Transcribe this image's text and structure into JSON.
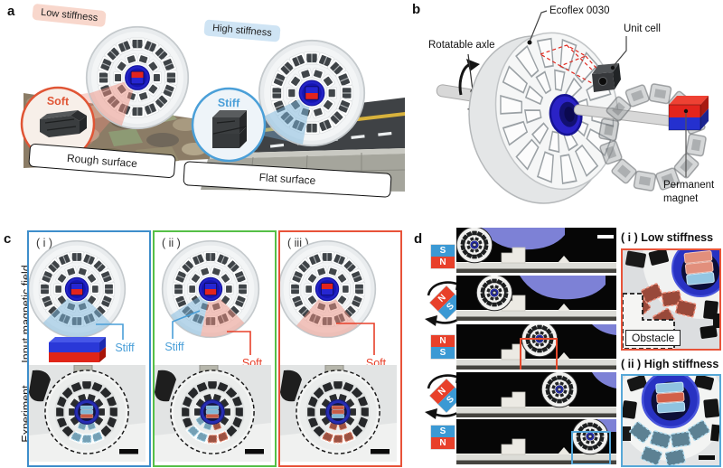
{
  "figure": {
    "panel_a": {
      "label": "a",
      "low_stiffness_badge": "Low stiffness",
      "high_stiffness_badge": "High stiffness",
      "soft_label": "Soft",
      "stiff_label": "Stiff",
      "rough_surface": "Rough surface",
      "flat_surface": "Flat surface"
    },
    "panel_b": {
      "label": "b",
      "ecoflex_label": "Ecoflex 0030",
      "unit_cell_label": "Unit cell",
      "axle_label": "Rotatable axle",
      "magnet_label": "Permanent magnet"
    },
    "panel_c": {
      "label": "c",
      "row_top_label": "Input magnetic field",
      "row_bottom_label": "Experiment",
      "columns": [
        {
          "num": "( i )",
          "stiff_label": "Stiff"
        },
        {
          "num": "( ii )",
          "stiff_label": "Stiff",
          "soft_label": "Soft"
        },
        {
          "num": "( iii )",
          "soft_label": "Soft"
        }
      ]
    },
    "panel_d": {
      "label": "d",
      "magnet_states": [
        {
          "top": "S",
          "bottom": "N",
          "rotating": false
        },
        {
          "top": "N",
          "bottom": "S",
          "rotating": true
        },
        {
          "top": "N",
          "bottom": "S",
          "rotating": false
        },
        {
          "top": "N",
          "bottom": "S",
          "rotating": true
        },
        {
          "top": "S",
          "bottom": "N",
          "rotating": false
        }
      ],
      "callout_i_title": "( i ) Low stiffness",
      "obstacle_label": "Obstacle",
      "callout_ii_title": "( ii ) High stiffness"
    }
  },
  "colors": {
    "stiff_blue": "#4a9fd8",
    "soft_red": "#e8402a",
    "box_i_border": "#3e8ecb",
    "box_ii_border": "#55bf47",
    "box_iii_border": "#e85339",
    "magnet_red": "#e3241d",
    "magnet_blue": "#2626d2"
  }
}
